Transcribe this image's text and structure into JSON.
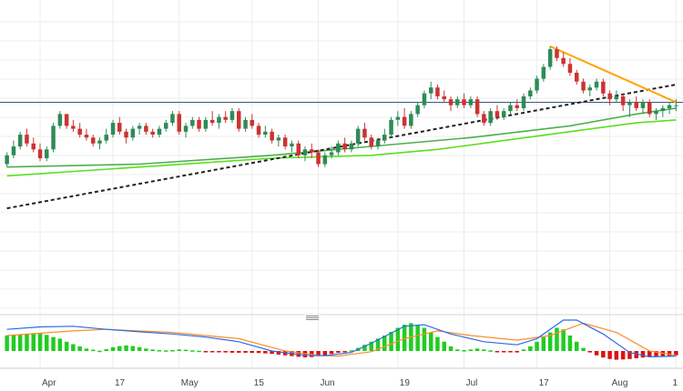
{
  "chart_data": {
    "type": "candlestick",
    "x_tick_labels": [
      "Apr",
      "17",
      "May",
      "15",
      "Jun",
      "19",
      "Jul",
      "17",
      "Aug",
      "1"
    ],
    "price_panel": {
      "y_range": [
        0,
        100
      ],
      "grid": true,
      "horizontal_level": 69,
      "candles": [
        [
          48,
          52,
          47,
          51
        ],
        [
          51,
          56,
          50,
          54
        ],
        [
          54,
          59,
          53,
          58
        ],
        [
          58,
          60,
          54,
          55
        ],
        [
          55,
          57,
          52,
          53
        ],
        [
          53,
          55,
          49,
          50
        ],
        [
          50,
          54,
          49,
          53
        ],
        [
          53,
          62,
          52,
          61
        ],
        [
          61,
          66,
          60,
          65
        ],
        [
          65,
          65,
          60,
          61
        ],
        [
          61,
          63,
          59,
          60
        ],
        [
          60,
          62,
          57,
          58
        ],
        [
          58,
          60,
          56,
          57
        ],
        [
          57,
          58,
          54,
          55
        ],
        [
          55,
          57,
          53,
          56
        ],
        [
          56,
          60,
          55,
          58
        ],
        [
          58,
          63,
          57,
          62
        ],
        [
          62,
          64,
          58,
          59
        ],
        [
          59,
          60,
          55,
          57
        ],
        [
          57,
          61,
          56,
          60
        ],
        [
          60,
          62,
          58,
          61
        ],
        [
          61,
          62,
          58,
          59
        ],
        [
          59,
          60,
          57,
          58
        ],
        [
          58,
          61,
          57,
          60
        ],
        [
          60,
          63,
          59,
          62
        ],
        [
          62,
          66,
          61,
          65
        ],
        [
          65,
          66,
          58,
          59
        ],
        [
          59,
          62,
          57,
          61
        ],
        [
          61,
          64,
          60,
          63
        ],
        [
          63,
          64,
          59,
          60
        ],
        [
          60,
          64,
          59,
          63
        ],
        [
          63,
          66,
          61,
          62
        ],
        [
          62,
          65,
          60,
          64
        ],
        [
          64,
          66,
          62,
          63
        ],
        [
          63,
          67,
          62,
          66
        ],
        [
          66,
          67,
          59,
          60
        ],
        [
          60,
          64,
          59,
          63
        ],
        [
          63,
          65,
          60,
          61
        ],
        [
          61,
          62,
          57,
          58
        ],
        [
          58,
          61,
          57,
          59
        ],
        [
          59,
          60,
          55,
          56
        ],
        [
          56,
          58,
          54,
          57
        ],
        [
          57,
          58,
          53,
          54
        ],
        [
          54,
          56,
          52,
          55
        ],
        [
          55,
          56,
          50,
          51
        ],
        [
          51,
          54,
          49,
          53
        ],
        [
          53,
          55,
          50,
          52
        ],
        [
          52,
          53,
          47,
          48
        ],
        [
          48,
          52,
          47,
          51
        ],
        [
          51,
          54,
          50,
          52
        ],
        [
          52,
          56,
          51,
          55
        ],
        [
          55,
          57,
          52,
          53
        ],
        [
          53,
          56,
          52,
          55
        ],
        [
          55,
          61,
          54,
          60
        ],
        [
          60,
          62,
          56,
          57
        ],
        [
          57,
          58,
          53,
          54
        ],
        [
          54,
          57,
          53,
          56
        ],
        [
          56,
          60,
          55,
          58
        ],
        [
          58,
          64,
          57,
          63
        ],
        [
          63,
          66,
          61,
          64
        ],
        [
          64,
          67,
          60,
          61
        ],
        [
          61,
          66,
          60,
          65
        ],
        [
          65,
          69,
          64,
          68
        ],
        [
          68,
          73,
          67,
          72
        ],
        [
          72,
          76,
          70,
          74
        ],
        [
          74,
          75,
          70,
          71
        ],
        [
          71,
          73,
          69,
          70
        ],
        [
          70,
          71,
          66,
          68
        ],
        [
          68,
          71,
          67,
          70
        ],
        [
          70,
          72,
          67,
          68
        ],
        [
          68,
          71,
          67,
          70
        ],
        [
          70,
          71,
          64,
          65
        ],
        [
          65,
          66,
          61,
          62
        ],
        [
          62,
          67,
          61,
          66
        ],
        [
          66,
          68,
          63,
          64
        ],
        [
          64,
          67,
          63,
          66
        ],
        [
          66,
          69,
          65,
          68
        ],
        [
          68,
          70,
          66,
          67
        ],
        [
          67,
          72,
          66,
          71
        ],
        [
          71,
          74,
          70,
          73
        ],
        [
          73,
          78,
          72,
          77
        ],
        [
          77,
          82,
          76,
          81
        ],
        [
          81,
          88,
          80,
          87
        ],
        [
          87,
          88,
          83,
          84
        ],
        [
          84,
          86,
          81,
          82
        ],
        [
          82,
          84,
          78,
          79
        ],
        [
          79,
          80,
          75,
          76
        ],
        [
          76,
          77,
          72,
          73
        ],
        [
          73,
          75,
          71,
          74
        ],
        [
          74,
          77,
          73,
          76
        ],
        [
          76,
          77,
          71,
          72
        ],
        [
          72,
          73,
          68,
          70
        ],
        [
          70,
          73,
          69,
          71
        ],
        [
          71,
          72,
          66,
          68
        ],
        [
          68,
          70,
          64,
          69
        ],
        [
          69,
          71,
          66,
          67
        ],
        [
          67,
          70,
          65,
          69
        ],
        [
          69,
          70,
          64,
          65
        ],
        [
          65,
          67,
          63,
          66
        ],
        [
          66,
          68,
          64,
          67
        ],
        [
          67,
          69,
          65,
          68
        ],
        [
          68,
          70,
          66,
          68
        ]
      ],
      "lines": [
        {
          "kind": "moving-average",
          "color": "#4caf50",
          "points": [
            [
              0,
              47
            ],
            [
              20,
              48
            ],
            [
              40,
              51
            ],
            [
              55,
              54
            ],
            [
              70,
              57
            ],
            [
              85,
              61
            ],
            [
              95,
              65
            ],
            [
              101,
              67
            ]
          ]
        },
        {
          "kind": "moving-average",
          "color": "#5be01f",
          "points": [
            [
              0,
              44
            ],
            [
              20,
              47
            ],
            [
              40,
              50
            ],
            [
              55,
              51
            ],
            [
              65,
              53
            ],
            [
              75,
              56
            ],
            [
              85,
              59
            ],
            [
              95,
              62
            ],
            [
              101,
              63
            ]
          ]
        },
        {
          "kind": "trendline",
          "color": "#222222",
          "dashed": true,
          "points": [
            [
              0,
              33
            ],
            [
              101,
              75
            ]
          ]
        },
        {
          "kind": "trendline",
          "color": "#ffa500",
          "dashed": false,
          "points": [
            [
              82,
              88
            ],
            [
              101,
              69
            ]
          ]
        }
      ]
    },
    "oscillator_panel": {
      "y_range": [
        -1,
        1
      ],
      "histogram": [
        0.5,
        0.5,
        0.52,
        0.56,
        0.58,
        0.56,
        0.52,
        0.45,
        0.4,
        0.3,
        0.22,
        0.15,
        0.08,
        0.04,
        0.01,
        0.06,
        0.12,
        0.16,
        0.18,
        0.16,
        0.12,
        0.08,
        0.05,
        0.03,
        0.02,
        0.03,
        0.05,
        0.04,
        0.02,
        0.01,
        -0.02,
        -0.05,
        -0.08,
        -0.1,
        -0.12,
        -0.12,
        -0.12,
        -0.13,
        -0.14,
        -0.16,
        -0.2,
        -0.25,
        -0.3,
        -0.35,
        -0.4,
        -0.44,
        -0.42,
        -0.35,
        -0.28,
        -0.2,
        -0.12,
        -0.05,
        0.02,
        0.1,
        0.2,
        0.3,
        0.4,
        0.5,
        0.62,
        0.75,
        0.85,
        0.9,
        0.85,
        0.75,
        0.6,
        0.45,
        0.3,
        0.15,
        0.05,
        0.03,
        0.05,
        0.08,
        0.05,
        0.02,
        -0.02,
        -0.05,
        -0.08,
        -0.1,
        0.05,
        0.15,
        0.3,
        0.45,
        0.6,
        0.75,
        0.7,
        0.5,
        0.3,
        0.1,
        -0.1,
        -0.3,
        -0.45,
        -0.55,
        -0.6,
        -0.58,
        -0.55,
        -0.5,
        -0.45,
        -0.42,
        -0.4,
        -0.38,
        -0.35,
        -0.3
      ],
      "macd_line": [
        [
          0,
          0.7
        ],
        [
          5,
          0.78
        ],
        [
          10,
          0.8
        ],
        [
          15,
          0.7
        ],
        [
          20,
          0.62
        ],
        [
          25,
          0.55
        ],
        [
          30,
          0.45
        ],
        [
          35,
          0.3
        ],
        [
          40,
          0.0
        ],
        [
          45,
          -0.3
        ],
        [
          48,
          -0.32
        ],
        [
          52,
          -0.1
        ],
        [
          55,
          0.25
        ],
        [
          60,
          0.8
        ],
        [
          63,
          0.85
        ],
        [
          67,
          0.55
        ],
        [
          72,
          0.3
        ],
        [
          77,
          0.2
        ],
        [
          80,
          0.4
        ],
        [
          84,
          1.0
        ],
        [
          86,
          1.0
        ],
        [
          90,
          0.55
        ],
        [
          94,
          -0.1
        ],
        [
          97,
          -0.4
        ],
        [
          101,
          -0.35
        ]
      ],
      "signal_line": [
        [
          0,
          0.5
        ],
        [
          10,
          0.65
        ],
        [
          15,
          0.7
        ],
        [
          25,
          0.6
        ],
        [
          35,
          0.4
        ],
        [
          42,
          0.0
        ],
        [
          47,
          -0.3
        ],
        [
          50,
          -0.35
        ],
        [
          55,
          -0.05
        ],
        [
          60,
          0.4
        ],
        [
          65,
          0.65
        ],
        [
          70,
          0.5
        ],
        [
          77,
          0.35
        ],
        [
          82,
          0.5
        ],
        [
          87,
          0.9
        ],
        [
          92,
          0.6
        ],
        [
          97,
          0.0
        ],
        [
          101,
          -0.3
        ]
      ]
    },
    "colors": {
      "bull": "#2e8b57",
      "bear": "#cc3333",
      "level_line": "#3b5a7a",
      "macd_line": "#2b6be6",
      "signal_line": "#ff8c2a",
      "hist_pos": "#22cc22",
      "hist_neg": "#dd1111"
    }
  }
}
